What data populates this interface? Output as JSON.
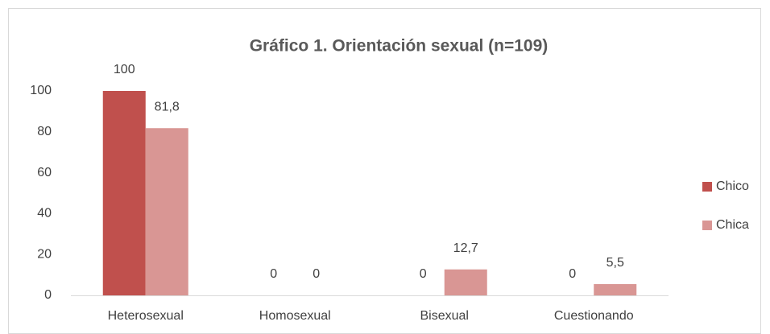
{
  "chart_data": {
    "type": "bar",
    "title": "Gráfico 1. Orientación sexual (n=109)",
    "categories": [
      "Heterosexual",
      "Homosexual",
      "Bisexual",
      "Cuestionando"
    ],
    "series": [
      {
        "name": "Chico",
        "color": "#c0504d",
        "values": [
          100,
          0,
          0,
          0
        ],
        "value_labels": [
          "100",
          "0",
          "0",
          "0"
        ]
      },
      {
        "name": "Chica",
        "color": "#d99694",
        "values": [
          81.8,
          0,
          12.7,
          5.5
        ],
        "value_labels": [
          "81,8",
          "0",
          "12,7",
          "5,5"
        ]
      }
    ],
    "ylim": [
      0,
      100
    ],
    "yticks": [
      0,
      20,
      40,
      60,
      80,
      100
    ],
    "grid": false,
    "legend": "right"
  }
}
